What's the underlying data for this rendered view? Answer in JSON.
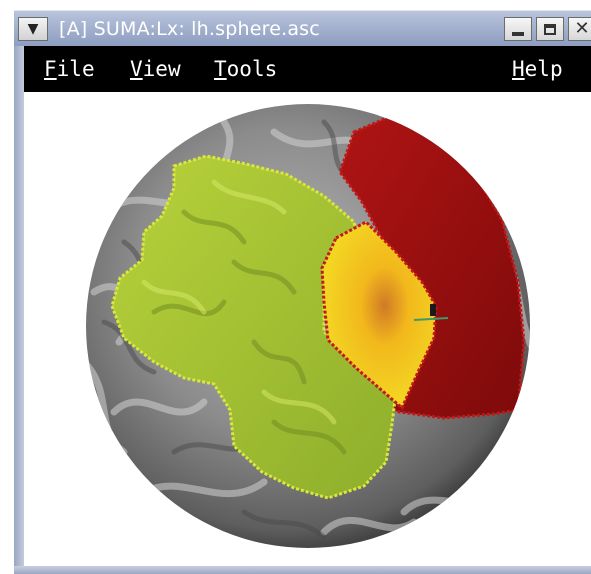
{
  "window": {
    "title": "[A] SUMA:Lx: lh.sphere.asc",
    "window_menu_icon": "chevron-down-icon",
    "minimize_icon": "minimize-icon",
    "maximize_icon": "maximize-icon",
    "close_icon": "close-icon"
  },
  "menubar": {
    "items": [
      {
        "label": "File"
      },
      {
        "label": "View"
      },
      {
        "label": "Tools"
      },
      {
        "label": "Help"
      }
    ]
  },
  "viewport": {
    "content": "cortical-surface-sphere",
    "colors": {
      "surface": "#8a8a8a",
      "green_region": "#a6c43a",
      "red_region": "#9c1010",
      "yellow_region": "#f0d21e",
      "orange_center": "#d8862a"
    }
  }
}
